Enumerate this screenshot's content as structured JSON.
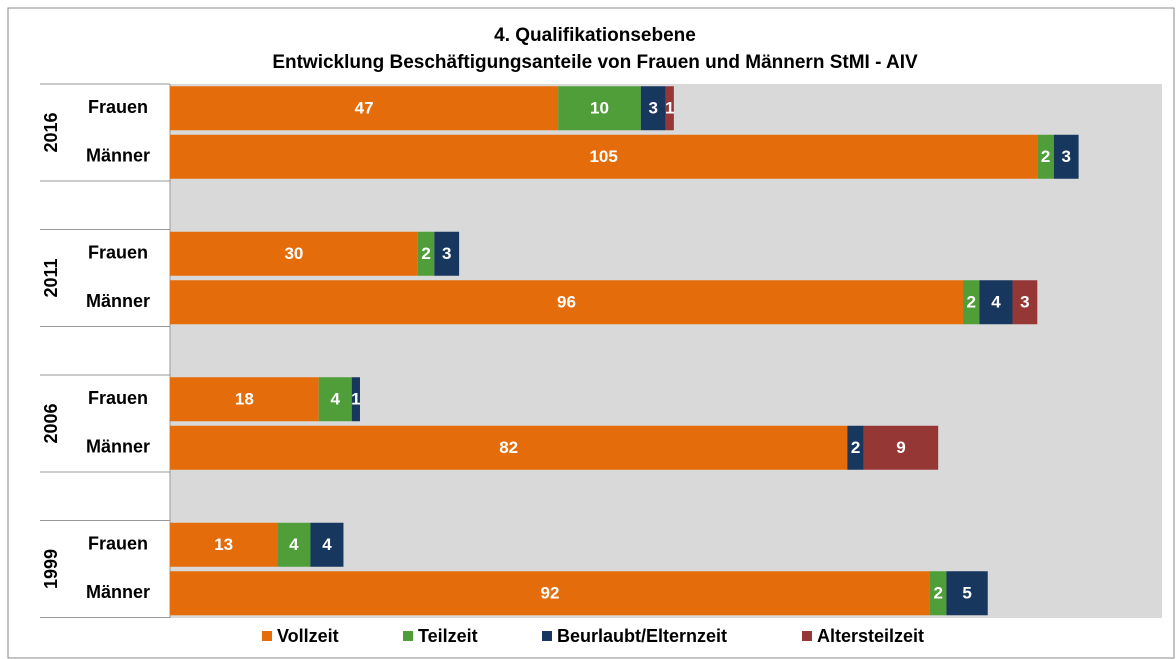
{
  "chart_data": {
    "type": "stacked-bar-horizontal",
    "title": "4. Qualifikationsebene",
    "subtitle": "Entwicklung Beschäftigungsanteile von Frauen und Männern StMI - AIV",
    "groups": [
      "2016",
      "2011",
      "2006",
      "1999"
    ],
    "categories": [
      "Frauen",
      "Männer",
      "Frauen",
      "Männer",
      "Frauen",
      "Männer",
      "Frauen",
      "Männer"
    ],
    "series": [
      {
        "name": "Vollzeit",
        "color": "#e46c0a",
        "values": [
          47,
          105,
          30,
          96,
          18,
          82,
          13,
          92
        ]
      },
      {
        "name": "Teilzeit",
        "color": "#4f9e39",
        "values": [
          10,
          2,
          2,
          2,
          4,
          null,
          4,
          2
        ]
      },
      {
        "name": "Beurlaubt/Elternzeit",
        "color": "#17375e",
        "values": [
          3,
          3,
          3,
          4,
          1,
          2,
          4,
          5
        ]
      },
      {
        "name": "Altersteilzeit",
        "color": "#953735",
        "values": [
          1,
          null,
          null,
          3,
          null,
          9,
          null,
          null
        ]
      }
    ]
  }
}
